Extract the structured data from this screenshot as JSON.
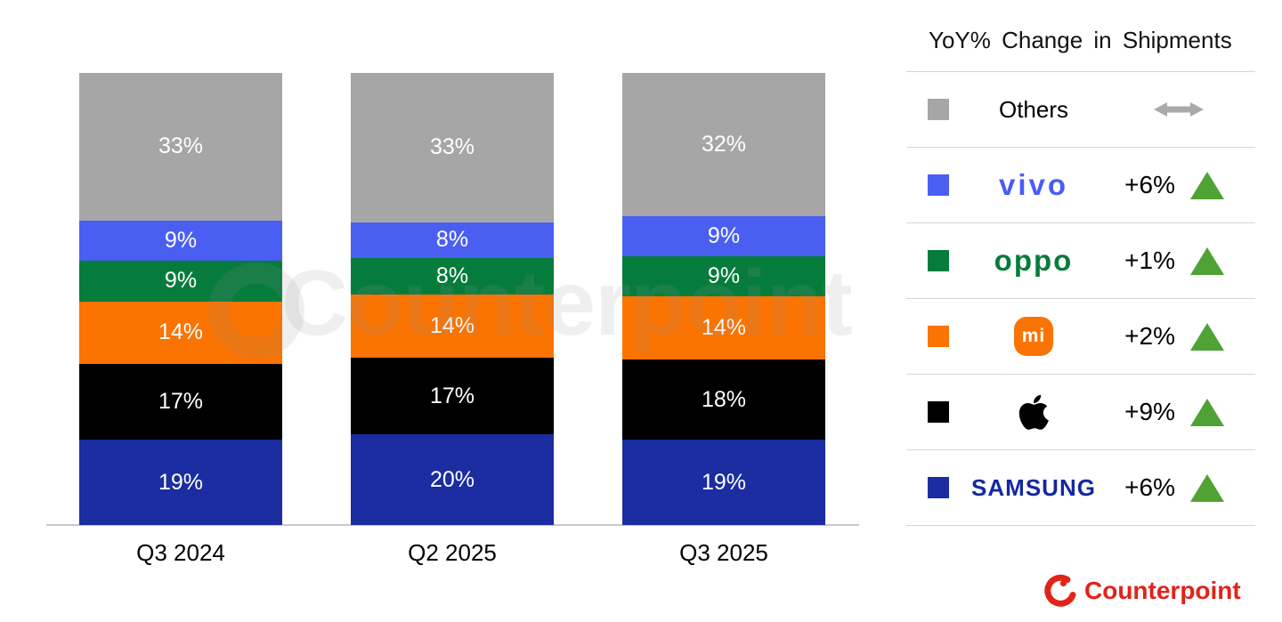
{
  "chart_data": {
    "type": "bar",
    "stacked": true,
    "categories": [
      "Q3 2024",
      "Q2 2025",
      "Q3 2025"
    ],
    "value_suffix": "%",
    "ylim": [
      0,
      100
    ],
    "grid": false,
    "legend_position": "right",
    "series": [
      {
        "name": "Others",
        "color": "#a6a6a6",
        "values": [
          33,
          33,
          32
        ]
      },
      {
        "name": "vivo",
        "color": "#4a5ff2",
        "values": [
          9,
          8,
          9
        ]
      },
      {
        "name": "OPPO",
        "color": "#067c3c",
        "values": [
          9,
          8,
          9
        ]
      },
      {
        "name": "Xiaomi",
        "color": "#fb7300",
        "values": [
          14,
          14,
          14
        ]
      },
      {
        "name": "Apple",
        "color": "#000000",
        "values": [
          17,
          17,
          18
        ]
      },
      {
        "name": "Samsung",
        "color": "#1b2da0",
        "values": [
          19,
          20,
          19
        ]
      }
    ]
  },
  "legend": {
    "title": "YoY% Change in Shipments",
    "rows": [
      {
        "brand": "Others",
        "logo": "others",
        "logo_text": "Others",
        "swatch": "#a6a6a6",
        "change": "",
        "indicator": "flat"
      },
      {
        "brand": "vivo",
        "logo": "vivo",
        "logo_text": "vivo",
        "swatch": "#4a5ff2",
        "change": "+6%",
        "indicator": "up"
      },
      {
        "brand": "OPPO",
        "logo": "oppo",
        "logo_text": "oppo",
        "swatch": "#067c3c",
        "change": "+1%",
        "indicator": "up"
      },
      {
        "brand": "Xiaomi",
        "logo": "mi",
        "logo_text": "mi",
        "swatch": "#fb7300",
        "change": "+2%",
        "indicator": "up"
      },
      {
        "brand": "Apple",
        "logo": "apple",
        "logo_text": "",
        "swatch": "#000000",
        "change": "+9%",
        "indicator": "up"
      },
      {
        "brand": "Samsung",
        "logo": "samsung",
        "logo_text": "SAMSUNG",
        "swatch": "#1b2da0",
        "change": "+6%",
        "indicator": "up"
      }
    ]
  },
  "watermark": {
    "text": "Counterpoint"
  },
  "footer": {
    "brand": "Counterpoint"
  },
  "colors": {
    "up_triangle": "#4fa234",
    "flat_arrow": "#a9a9a9",
    "separator": "#d6d6d6",
    "axis": "#c9c9c9",
    "brand_red": "#e2231a"
  }
}
